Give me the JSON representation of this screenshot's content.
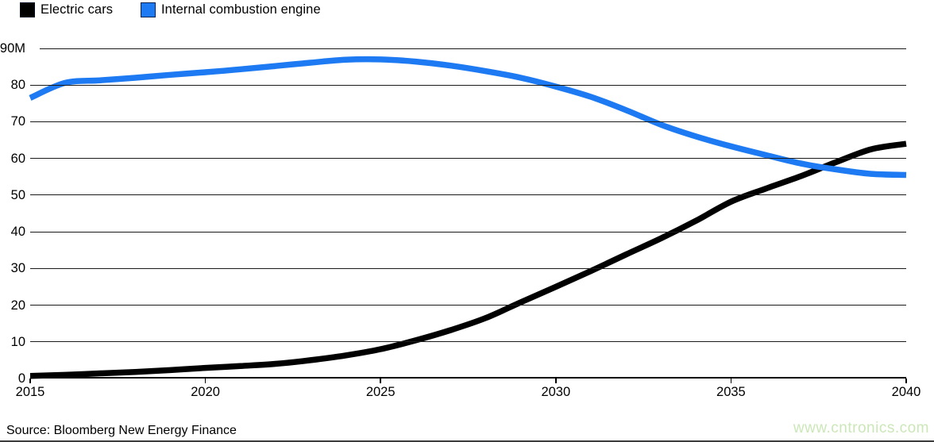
{
  "source": "Source: Bloomberg New Energy Finance",
  "watermark": "www.cntronics.com",
  "colors": {
    "background": "#ffffff",
    "grid": "#1a1a1a",
    "axis": "#000000",
    "text": "#000000",
    "electric": "#000000",
    "combustion": "#1d7af2",
    "watermark": "#cbe7b8"
  },
  "chart_data": {
    "type": "line",
    "title": "",
    "xlabel": "",
    "ylabel": "",
    "grid": "horizontal",
    "legend_position": "top-left",
    "xlim": [
      2015,
      2040
    ],
    "ylim": [
      0,
      90
    ],
    "line_width": 7.5,
    "x": [
      2015,
      2016,
      2017,
      2018,
      2019,
      2020,
      2021,
      2022,
      2023,
      2024,
      2025,
      2026,
      2027,
      2028,
      2029,
      2030,
      2031,
      2032,
      2033,
      2034,
      2035,
      2036,
      2037,
      2038,
      2039,
      2040
    ],
    "series": [
      {
        "name": "Electric cars",
        "color": "#000000",
        "values": [
          0.7,
          1.0,
          1.4,
          1.8,
          2.3,
          2.9,
          3.4,
          4.0,
          5.0,
          6.3,
          8.0,
          10.4,
          13.2,
          16.5,
          20.8,
          25.0,
          29.3,
          33.8,
          38.2,
          43.0,
          48.2,
          51.8,
          55.2,
          59.0,
          62.5,
          64.0
        ]
      },
      {
        "name": "Internal combustion engine",
        "color": "#1d7af2",
        "values": [
          76.5,
          80.6,
          81.3,
          82.0,
          82.8,
          83.5,
          84.3,
          85.2,
          86.1,
          86.9,
          87.0,
          86.4,
          85.3,
          83.8,
          82.0,
          79.6,
          76.8,
          73.2,
          69.2,
          66.0,
          63.3,
          60.9,
          58.6,
          57.0,
          55.8,
          55.5
        ]
      }
    ],
    "yticks": [
      {
        "value": 0,
        "label": "0"
      },
      {
        "value": 10,
        "label": "10"
      },
      {
        "value": 20,
        "label": "20"
      },
      {
        "value": 30,
        "label": "30"
      },
      {
        "value": 40,
        "label": "40"
      },
      {
        "value": 50,
        "label": "50"
      },
      {
        "value": 60,
        "label": "60"
      },
      {
        "value": 70,
        "label": "70"
      },
      {
        "value": 80,
        "label": "80"
      },
      {
        "value": 90,
        "label": "90M"
      }
    ],
    "xticks": [
      {
        "value": 2015,
        "label": "2015"
      },
      {
        "value": 2020,
        "label": "2020"
      },
      {
        "value": 2025,
        "label": "2025"
      },
      {
        "value": 2030,
        "label": "2030"
      },
      {
        "value": 2035,
        "label": "2035"
      },
      {
        "value": 2040,
        "label": "2040"
      }
    ]
  }
}
